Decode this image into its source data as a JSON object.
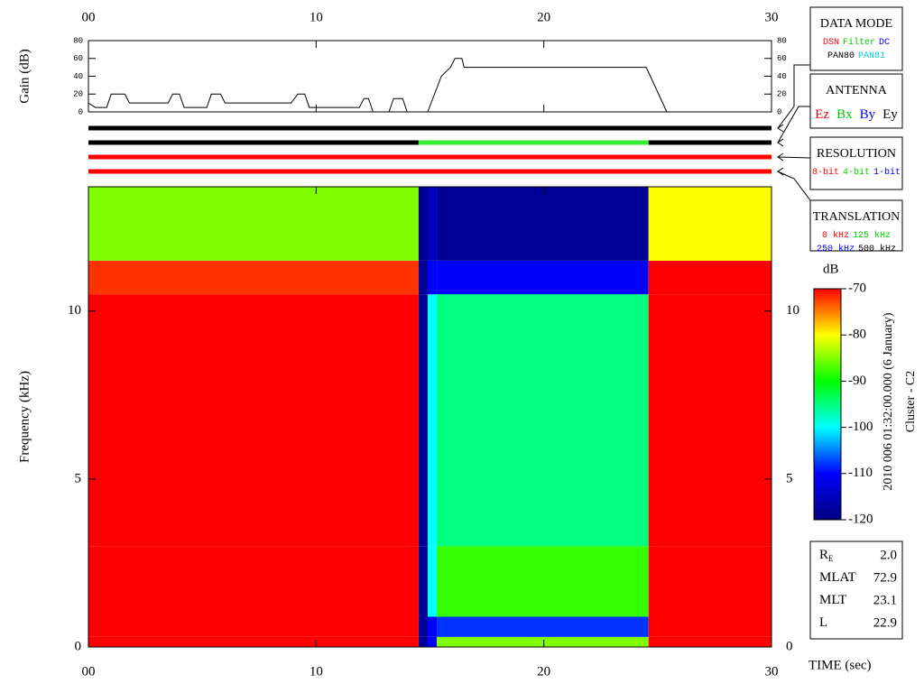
{
  "chart_data": [
    {
      "type": "line",
      "y_label": "Gain (dB)",
      "x": [
        0,
        0.3,
        0.8,
        1,
        1.6,
        1.8,
        3.5,
        3.7,
        4,
        4.2,
        5.2,
        5.4,
        5.8,
        6,
        8.9,
        9.2,
        9.5,
        9.7,
        11.9,
        12.1,
        12.3,
        12.5,
        13.2,
        13.4,
        13.8,
        14,
        14.9,
        15.2,
        15.5,
        15.9,
        16.1,
        16.4,
        16.5,
        24.5,
        25.4
      ],
      "values": [
        10,
        5,
        5,
        20,
        20,
        10,
        10,
        20,
        20,
        5,
        5,
        20,
        20,
        10,
        10,
        20,
        20,
        5,
        5,
        15,
        15,
        0,
        0,
        15,
        15,
        0,
        0,
        20,
        40,
        50,
        60,
        60,
        50,
        50,
        0
      ],
      "color": "#000000",
      "xlim": [
        0,
        30
      ],
      "xticks": [
        {
          "value": 0,
          "label": "00"
        },
        10,
        20,
        30
      ],
      "ylim": [
        0,
        80
      ],
      "yticks": [
        0,
        20,
        40,
        60,
        80
      ]
    },
    {
      "type": "heatmap",
      "x_label": "TIME (sec)",
      "y_label": "Frequency (kHz)",
      "x_edges": [
        0,
        14.5,
        14.9,
        15.3,
        24.6,
        30
      ],
      "y_edges": [
        0,
        0.3,
        0.9,
        3,
        10.5,
        11.5,
        13.7
      ],
      "values": [
        [
          -70,
          -118,
          -110,
          -85,
          -70
        ],
        [
          -70,
          -118,
          -110,
          -108,
          -70
        ],
        [
          -70,
          -118,
          -100,
          -88,
          -70
        ],
        [
          -70,
          -118,
          -100,
          -95,
          -70
        ],
        [
          -72,
          -118,
          -110,
          -110,
          -70
        ],
        [
          -85,
          -118,
          -115,
          -118,
          -80
        ]
      ],
      "xlim": [
        0,
        30
      ],
      "xticks": [
        {
          "value": 0,
          "label": "00"
        },
        10,
        20,
        30
      ],
      "ylim": [
        0,
        13.7
      ],
      "yticks": [
        0,
        5,
        10
      ],
      "colorbar": {
        "title": "dB",
        "clim": [
          -120,
          -70
        ],
        "ticks": [
          -70,
          -80,
          -90,
          -100,
          -110,
          -120
        ],
        "colormap": [
          "#00007f",
          "#0000ff",
          "#00ffff",
          "#00ff00",
          "#ffff00",
          "#ff0000"
        ]
      }
    }
  ],
  "mode_bars": [
    {
      "segments": [
        {
          "start": 0,
          "end": 30,
          "color": "#000000"
        }
      ]
    },
    {
      "segments": [
        {
          "start": 0,
          "end": 14.5,
          "color": "#000000"
        },
        {
          "start": 14.5,
          "end": 24.6,
          "color": "#33ee33"
        },
        {
          "start": 24.6,
          "end": 30,
          "color": "#000000"
        }
      ]
    },
    {
      "segments": [
        {
          "start": 0,
          "end": 30,
          "color": "#ff0000"
        }
      ]
    },
    {
      "segments": [
        {
          "start": 0,
          "end": 30,
          "color": "#ff0000"
        }
      ]
    }
  ],
  "panels": [
    {
      "title": "DATA MODE",
      "rows": [
        [
          {
            "text": "DSN",
            "color": "#ff0000"
          },
          {
            "text": "Filter",
            "color": "#00cc00"
          },
          {
            "text": "DC",
            "color": "#0000ff"
          }
        ],
        [
          {
            "text": "PAN80",
            "color": "#000000"
          },
          {
            "text": "PAN81",
            "color": "#00cccc"
          }
        ]
      ]
    },
    {
      "title": "ANTENNA",
      "rows": [
        [
          {
            "text": "Ez",
            "color": "#ff0000"
          },
          {
            "text": "Bx",
            "color": "#00cc00"
          },
          {
            "text": "By",
            "color": "#0000ff"
          },
          {
            "text": "Ey",
            "color": "#000000"
          }
        ]
      ]
    },
    {
      "title": "RESOLUTION",
      "rows": [
        [
          {
            "text": "8-bit",
            "color": "#ff0000"
          },
          {
            "text": "4-bit",
            "color": "#00cc00"
          },
          {
            "text": "1-bit",
            "color": "#0000ff"
          }
        ]
      ]
    },
    {
      "title": "TRANSLATION",
      "rows": [
        [
          {
            "text": "0 kHz",
            "color": "#ff0000"
          },
          {
            "text": "125 kHz",
            "color": "#00cc00"
          }
        ],
        [
          {
            "text": "250 kHz",
            "color": "#0000ff"
          },
          {
            "text": "500 kHz",
            "color": "#000000"
          }
        ]
      ]
    }
  ],
  "info": [
    {
      "label": "R",
      "sub": "E",
      "value": "2.0"
    },
    {
      "label": "MLAT",
      "value": "72.9"
    },
    {
      "label": "MLT",
      "value": "23.1"
    },
    {
      "label": "L",
      "value": "22.9"
    }
  ],
  "caption": [
    "2010 006 01:32:00.000 (6 January)",
    "Cluster - C2"
  ]
}
